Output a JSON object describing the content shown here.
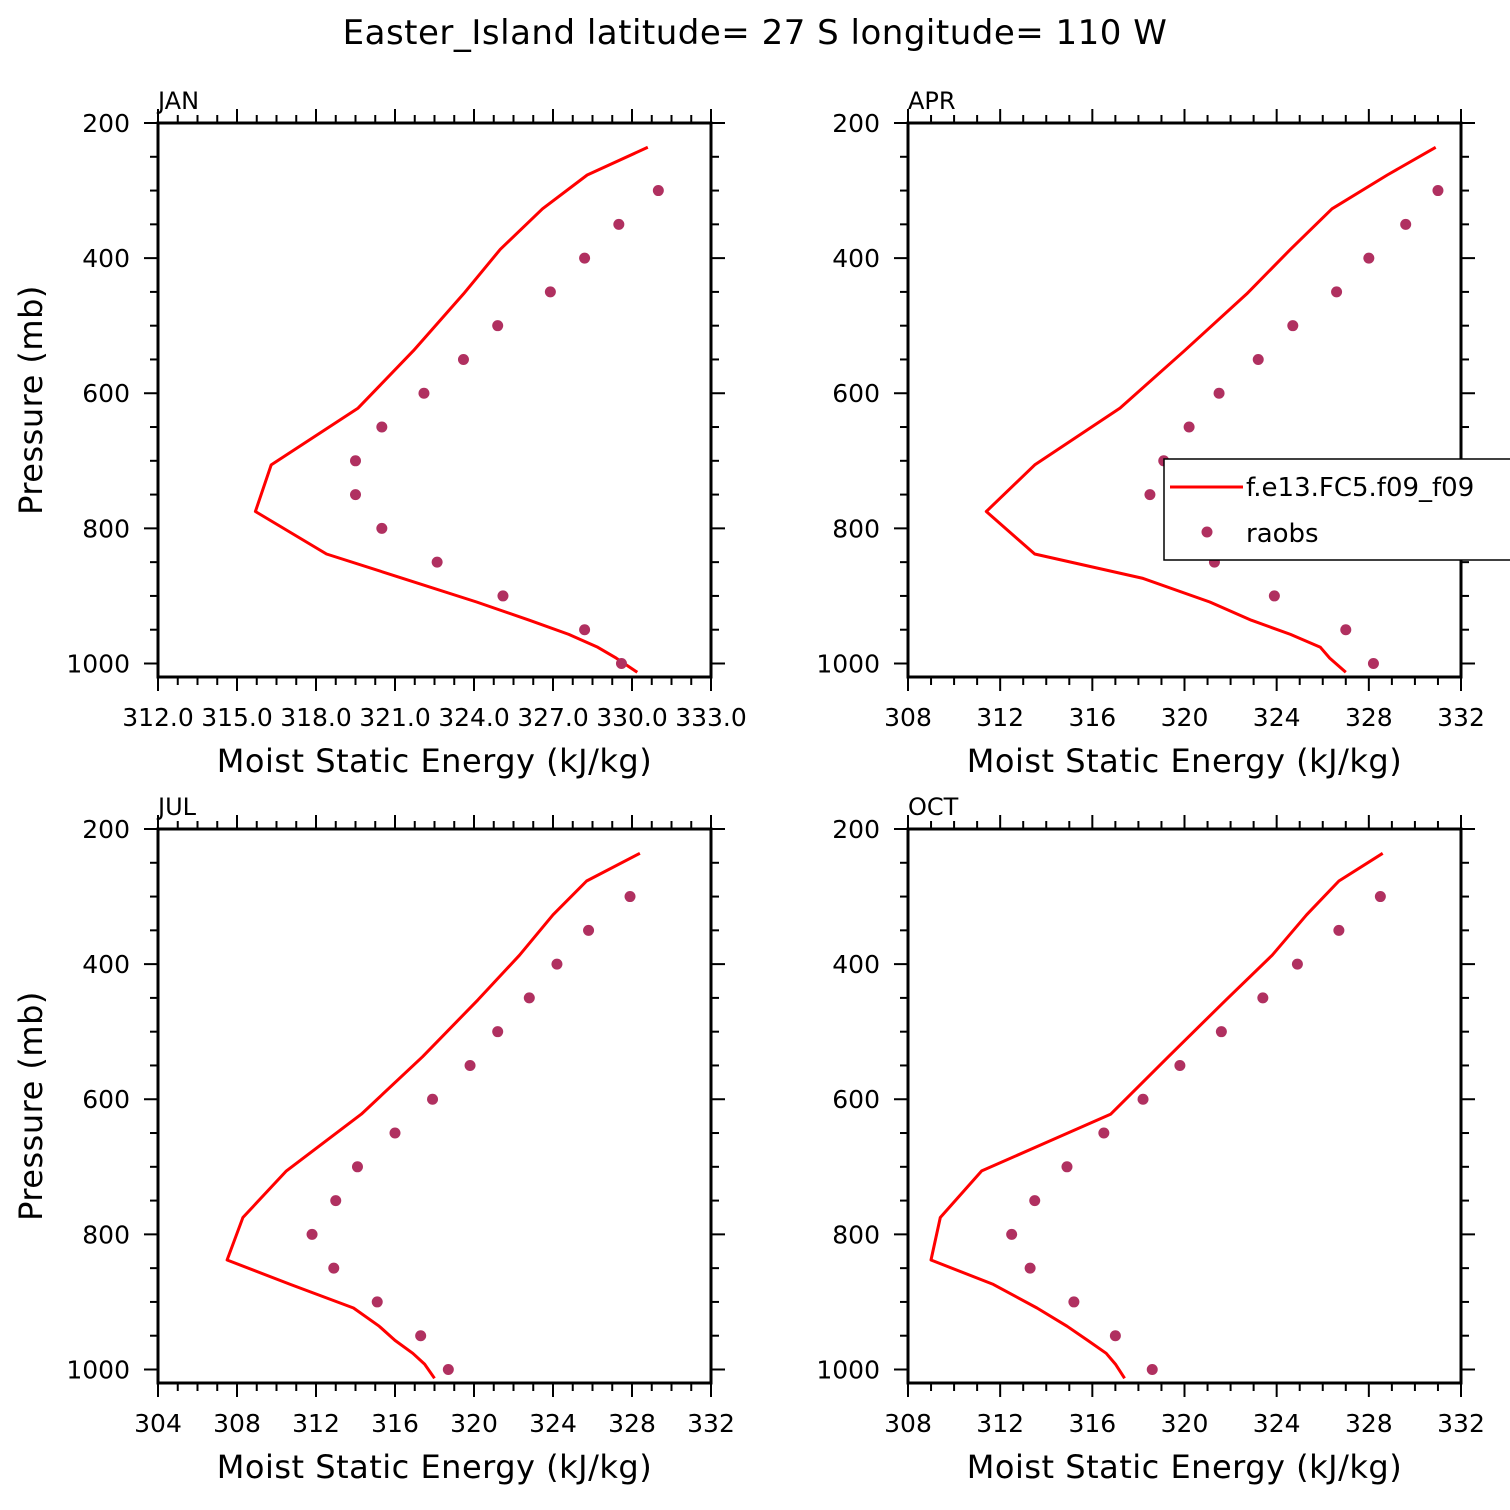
{
  "title": "Easter_Island  latitude= 27 S longitude= 110 W",
  "colors": {
    "model": "#ff0000",
    "obs": "#b03060",
    "axis": "#000000"
  },
  "legend": {
    "model_label": "f.e13.FC5.f09_f09",
    "obs_label": "raobs"
  },
  "chart_data": [
    {
      "type": "line",
      "panel": "JAN",
      "xlabel": "Moist Static Energy (kJ/kg)",
      "ylabel": "Pressure (mb)",
      "xlim": [
        312.0,
        333.0
      ],
      "ylim": [
        1020,
        200
      ],
      "x_ticks": [
        312.0,
        315.0,
        318.0,
        321.0,
        324.0,
        327.0,
        330.0,
        333.0
      ],
      "x_tick_labels": [
        "312.0",
        "315.0",
        "318.0",
        "321.0",
        "324.0",
        "327.0",
        "330.0",
        "333.0"
      ],
      "y_ticks": [
        200,
        400,
        600,
        800,
        1000
      ],
      "y_tick_labels": [
        "200",
        "400",
        "600",
        "800",
        "1000"
      ],
      "series": [
        {
          "name": "f.e13.FC5.f09_f09",
          "kind": "line",
          "pressure": [
            236,
            277,
            327,
            387,
            453,
            537,
            622,
            706,
            775,
            838,
            874,
            909,
            936,
            957,
            976,
            992,
            1013
          ],
          "values": [
            330.6,
            328.3,
            326.6,
            325.0,
            323.6,
            321.7,
            319.6,
            316.3,
            315.7,
            318.4,
            321.3,
            324.1,
            326.1,
            327.6,
            328.7,
            329.4,
            330.2
          ]
        },
        {
          "name": "raobs",
          "kind": "scatter",
          "pressure": [
            300,
            350,
            400,
            450,
            500,
            550,
            600,
            650,
            700,
            750,
            800,
            850,
            900,
            950,
            1000
          ],
          "values": [
            331.0,
            329.5,
            328.2,
            326.9,
            324.9,
            323.6,
            322.1,
            320.5,
            319.5,
            319.5,
            320.5,
            322.6,
            325.1,
            328.2,
            329.6
          ]
        }
      ]
    },
    {
      "type": "line",
      "panel": "APR",
      "xlabel": "Moist Static Energy (kJ/kg)",
      "ylabel": "",
      "xlim": [
        308,
        332
      ],
      "ylim": [
        1020,
        200
      ],
      "x_ticks": [
        308,
        312,
        316,
        320,
        324,
        328,
        332
      ],
      "x_tick_labels": [
        "308",
        "312",
        "316",
        "320",
        "324",
        "328",
        "332"
      ],
      "y_ticks": [
        200,
        400,
        600,
        800,
        1000
      ],
      "y_tick_labels": [
        "200",
        "400",
        "600",
        "800",
        "1000"
      ],
      "series": [
        {
          "name": "f.e13.FC5.f09_f09",
          "kind": "line",
          "pressure": [
            236,
            277,
            327,
            387,
            453,
            537,
            622,
            706,
            775,
            838,
            874,
            909,
            936,
            957,
            976,
            992,
            1013
          ],
          "values": [
            330.9,
            328.8,
            326.4,
            324.6,
            322.7,
            320.0,
            317.2,
            313.5,
            311.4,
            313.5,
            318.2,
            321.1,
            322.9,
            324.6,
            325.9,
            326.3,
            327.0
          ]
        },
        {
          "name": "raobs",
          "kind": "scatter",
          "pressure": [
            300,
            350,
            400,
            450,
            500,
            550,
            600,
            650,
            700,
            750,
            800,
            850,
            900,
            950,
            1000
          ],
          "values": [
            331.0,
            329.6,
            328.0,
            326.6,
            324.7,
            323.2,
            321.5,
            320.2,
            319.1,
            318.5,
            319.6,
            321.3,
            323.9,
            327.0,
            328.2
          ]
        }
      ]
    },
    {
      "type": "line",
      "panel": "JUL",
      "xlabel": "Moist Static Energy (kJ/kg)",
      "ylabel": "Pressure (mb)",
      "xlim": [
        304,
        332
      ],
      "ylim": [
        1020,
        200
      ],
      "x_ticks": [
        304,
        308,
        312,
        316,
        320,
        324,
        328,
        332
      ],
      "x_tick_labels": [
        "304",
        "308",
        "312",
        "316",
        "320",
        "324",
        "328",
        "332"
      ],
      "y_ticks": [
        200,
        400,
        600,
        800,
        1000
      ],
      "y_tick_labels": [
        "200",
        "400",
        "600",
        "800",
        "1000"
      ],
      "series": [
        {
          "name": "f.e13.FC5.f09_f09",
          "kind": "line",
          "pressure": [
            236,
            277,
            327,
            387,
            453,
            537,
            622,
            706,
            775,
            838,
            874,
            909,
            936,
            957,
            976,
            992,
            1013
          ],
          "values": [
            328.4,
            325.7,
            324.0,
            322.3,
            320.2,
            317.4,
            314.3,
            310.5,
            308.3,
            307.5,
            310.7,
            313.9,
            315.2,
            316.0,
            316.9,
            317.5,
            318.0
          ]
        },
        {
          "name": "raobs",
          "kind": "scatter",
          "pressure": [
            300,
            350,
            400,
            450,
            500,
            550,
            600,
            650,
            700,
            750,
            800,
            850,
            900,
            950,
            1000
          ],
          "values": [
            327.9,
            325.8,
            324.2,
            322.8,
            321.2,
            319.8,
            317.9,
            316.0,
            314.1,
            313.0,
            311.8,
            312.9,
            315.1,
            317.3,
            318.7
          ]
        }
      ]
    },
    {
      "type": "line",
      "panel": "OCT",
      "xlabel": "Moist Static Energy (kJ/kg)",
      "ylabel": "",
      "xlim": [
        308,
        332
      ],
      "ylim": [
        1020,
        200
      ],
      "x_ticks": [
        308,
        312,
        316,
        320,
        324,
        328,
        332
      ],
      "x_tick_labels": [
        "308",
        "312",
        "316",
        "320",
        "324",
        "328",
        "332"
      ],
      "y_ticks": [
        200,
        400,
        600,
        800,
        1000
      ],
      "y_tick_labels": [
        "200",
        "400",
        "600",
        "800",
        "1000"
      ],
      "series": [
        {
          "name": "f.e13.FC5.f09_f09",
          "kind": "line",
          "pressure": [
            236,
            277,
            327,
            387,
            453,
            537,
            622,
            706,
            775,
            838,
            874,
            909,
            936,
            957,
            976,
            992,
            1013
          ],
          "values": [
            328.6,
            326.7,
            325.3,
            323.8,
            321.8,
            319.3,
            316.8,
            311.2,
            309.4,
            309.0,
            311.7,
            313.6,
            314.9,
            315.8,
            316.6,
            317.0,
            317.4
          ]
        },
        {
          "name": "raobs",
          "kind": "scatter",
          "pressure": [
            300,
            350,
            400,
            450,
            500,
            550,
            600,
            650,
            700,
            750,
            800,
            850,
            900,
            950,
            1000
          ],
          "values": [
            328.5,
            326.7,
            324.9,
            323.4,
            321.6,
            319.8,
            318.2,
            316.5,
            314.9,
            313.5,
            312.5,
            313.3,
            315.2,
            317.0,
            318.6
          ]
        }
      ]
    }
  ]
}
